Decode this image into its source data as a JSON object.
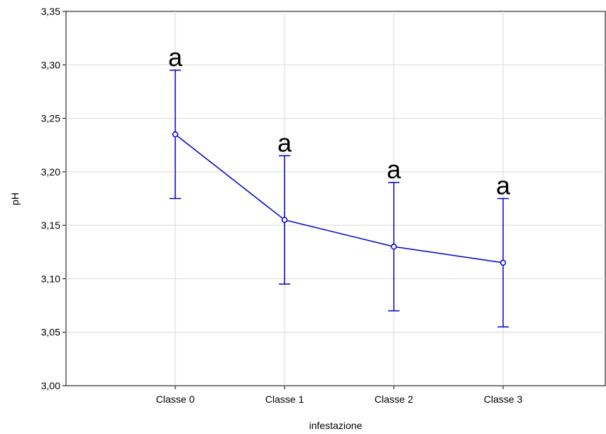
{
  "chart_data": {
    "type": "line",
    "title": "",
    "xlabel": "infestazione",
    "ylabel": "pH",
    "categories": [
      "Classe 0",
      "Classe 1",
      "Classe 2",
      "Classe 3"
    ],
    "ylim": [
      3.0,
      3.35
    ],
    "yticks": [
      "3,00",
      "3,05",
      "3,10",
      "3,15",
      "3,20",
      "3,25",
      "3,30",
      "3,35"
    ],
    "grid": true,
    "series": [
      {
        "values": [
          3.235,
          3.155,
          3.13,
          3.115
        ],
        "err_low": [
          3.175,
          3.095,
          3.07,
          3.055
        ],
        "err_high": [
          3.295,
          3.215,
          3.19,
          3.175
        ]
      }
    ],
    "annotations": [
      "a",
      "a",
      "a",
      "a"
    ],
    "colors": {
      "series": "#0000cc",
      "grid": "#d9d9d9",
      "axis": "#000000"
    }
  }
}
